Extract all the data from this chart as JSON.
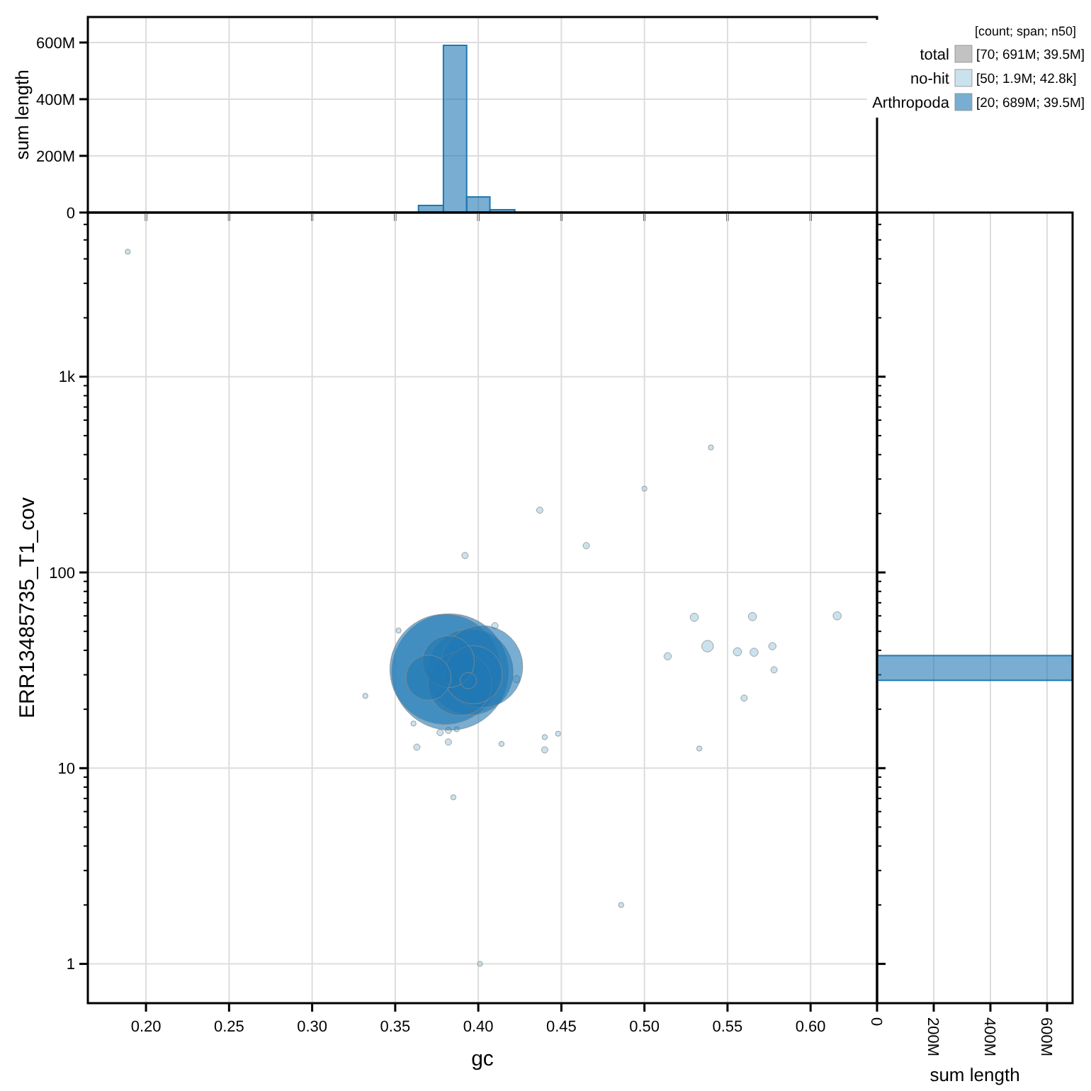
{
  "chart_data": [
    {
      "type": "histogram",
      "ylabel": "sum length",
      "bins": [
        0.364,
        0.379,
        0.393,
        0.407,
        0.422
      ],
      "values": [
        25000000,
        590000000,
        55000000,
        10000000
      ],
      "color": "#1f78b4",
      "xlim": [
        0.165,
        0.64
      ],
      "xticks": [
        0.2,
        0.25,
        0.3,
        0.35,
        0.4,
        0.45,
        0.5,
        0.55,
        0.6
      ],
      "ylim": [
        0,
        690000000
      ],
      "yticks": [
        0,
        {
          "value": 200000000,
          "label": "200M"
        },
        {
          "value": 400000000,
          "label": "400M"
        },
        {
          "value": 600000000,
          "label": "600M"
        }
      ],
      "tick_labels": "y",
      "grid": true
    },
    {
      "type": "bubble",
      "xlabel": "gc",
      "ylabel": "ERR13485735_T1_cov",
      "legend_title": "[count; span; n50]",
      "legend": "top right",
      "log": "y",
      "grid": true,
      "xlim": [
        0.165,
        0.64
      ],
      "xticks": [
        {
          "value": 0.2,
          "label": "0.20"
        },
        {
          "value": 0.25,
          "label": "0.25"
        },
        {
          "value": 0.3,
          "label": "0.30"
        },
        {
          "value": 0.35,
          "label": "0.35"
        },
        {
          "value": 0.4,
          "label": "0.40"
        },
        {
          "value": 0.45,
          "label": "0.45"
        },
        {
          "value": 0.5,
          "label": "0.50"
        },
        {
          "value": 0.55,
          "label": "0.55"
        },
        {
          "value": 0.6,
          "label": "0.60"
        }
      ],
      "ylim": [
        0.63,
        6900
      ],
      "yticks": [
        1,
        {
          "value": 2,
          "label": null
        },
        {
          "value": 3,
          "label": null
        },
        {
          "value": 4,
          "label": null
        },
        {
          "value": 5,
          "label": null
        },
        {
          "value": 6,
          "label": null
        },
        {
          "value": 7,
          "label": null
        },
        {
          "value": 8,
          "label": null
        },
        {
          "value": 9,
          "label": null
        },
        10,
        {
          "value": 20,
          "label": null
        },
        {
          "value": 30,
          "label": null
        },
        {
          "value": 40,
          "label": null
        },
        {
          "value": 50,
          "label": null
        },
        {
          "value": 60,
          "label": null
        },
        {
          "value": 70,
          "label": null
        },
        {
          "value": 80,
          "label": null
        },
        {
          "value": 90,
          "label": null
        },
        100,
        {
          "value": 200,
          "label": null
        },
        {
          "value": 300,
          "label": null
        },
        {
          "value": 400,
          "label": null
        },
        {
          "value": 500,
          "label": null
        },
        {
          "value": 600,
          "label": null
        },
        {
          "value": 700,
          "label": null
        },
        {
          "value": 800,
          "label": null
        },
        {
          "value": 900,
          "label": null
        },
        {
          "value": 1000,
          "label": "1k"
        },
        {
          "value": 2000,
          "label": null
        },
        {
          "value": 3000,
          "label": null
        },
        {
          "value": 4000,
          "label": null
        },
        {
          "value": 5000,
          "label": null
        },
        {
          "value": 6000,
          "label": null
        }
      ],
      "annotations": [
        "[70; 691M; 39.5M]",
        "[50; 1.9M; 42.8k]",
        "[20; 689M; 39.5M]"
      ],
      "series": [
        {
          "name": "total",
          "color": "#999999"
        },
        {
          "name": "no-hit",
          "color": "#a6cee3",
          "x": [
            0.189,
            0.54,
            0.5,
            0.437,
            0.465,
            0.392,
            0.53,
            0.565,
            0.616,
            0.538,
            0.514,
            0.556,
            0.566,
            0.577,
            0.578,
            0.56,
            0.533,
            0.352,
            0.41,
            0.423,
            0.361,
            0.377,
            0.382,
            0.387,
            0.363,
            0.382,
            0.414,
            0.448,
            0.44,
            0.44,
            0.385,
            0.332,
            0.486,
            0.401
          ],
          "values": [
            4350,
            435,
            268,
            208,
            137,
            122,
            59,
            59.5,
            60,
            42,
            37.3,
            39.3,
            39.1,
            42,
            31.8,
            22.8,
            12.6,
            50.5,
            53.4,
            28.5,
            16.9,
            15.2,
            15.6,
            15.8,
            12.8,
            13.6,
            13.3,
            15,
            14.4,
            12.4,
            7.1,
            23.4,
            2,
            1
          ],
          "sizes": [
            0.002,
            0.002,
            0.002,
            0.003,
            0.003,
            0.003,
            0.005,
            0.005,
            0.005,
            0.01,
            0.004,
            0.005,
            0.005,
            0.004,
            0.003,
            0.003,
            0.002,
            0.002,
            0.003,
            0.004,
            0.002,
            0.003,
            0.003,
            0.002,
            0.003,
            0.003,
            0.002,
            0.002,
            0.002,
            0.003,
            0.002,
            0.002,
            0.002,
            0.002
          ]
        },
        {
          "name": "Arthropoda",
          "color": "#1f78b4",
          "x": [
            0.383,
            0.38,
            0.395,
            0.402,
            0.389,
            0.397,
            0.382,
            0.37,
            0.394
          ],
          "values": [
            31,
            32,
            31,
            33,
            27,
            30,
            35,
            29,
            28
          ],
          "sizes": [
            1,
            0.9,
            0.55,
            0.5,
            0.3,
            0.25,
            0.2,
            0.15,
            0.02
          ]
        }
      ]
    },
    {
      "type": "histogram",
      "orientation": "horizontal",
      "xlabel": "sum length",
      "log": "y",
      "bins": [
        28.1,
        37.6
      ],
      "values": [
        689000000
      ],
      "color": "#1f78b4",
      "xlim": [
        0,
        690000000
      ],
      "xticks": [
        0,
        {
          "value": 200000000,
          "label": "200M"
        },
        {
          "value": 400000000,
          "label": "400M"
        },
        {
          "value": 600000000,
          "label": "600M"
        }
      ],
      "ylim": [
        0.63,
        6900
      ],
      "tick_labels": "x",
      "grid": "x"
    }
  ]
}
